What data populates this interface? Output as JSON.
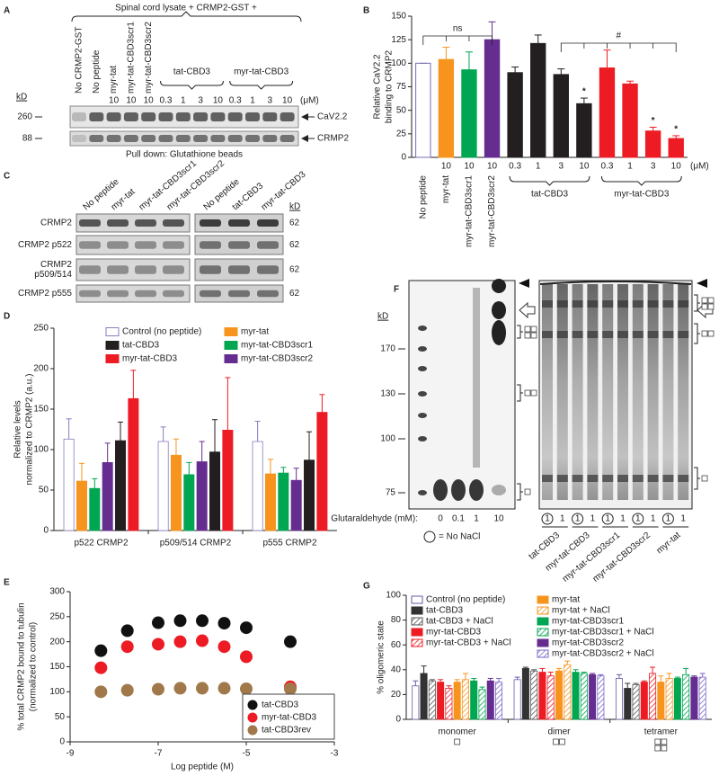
{
  "panel_a": {
    "letter": "A",
    "header": "Spinal cord lysate + CRMP2-GST +",
    "lanes": [
      "No CRMP2-GST",
      "No peptide",
      "myr-tat",
      "myr-tat-CBD3scr1",
      "myr-tat-CBD3scr2"
    ],
    "groups": [
      "tat-CBD3",
      "myr-tat-CBD3"
    ],
    "doses": [
      "10",
      "10",
      "10",
      "0.3",
      "1",
      "3",
      "10",
      "0.3",
      "1",
      "3",
      "10"
    ],
    "unit": "(μM)",
    "kd": "kD",
    "markers": [
      "260",
      "88"
    ],
    "bands": [
      "CaV2.2",
      "CRMP2"
    ],
    "footer": "Pull down: Glutathione beads"
  },
  "panel_c": {
    "letter": "C",
    "lanes_left": [
      "No peptide",
      "myr-tat",
      "myr-tat-CBD3scr1",
      "myr-tat-CBD3scr2"
    ],
    "lanes_right": [
      "No peptide",
      "tat-CBD3",
      "myr-tat-CBD3"
    ],
    "kd": "kD",
    "rows": [
      [
        "CRMP2"
      ],
      [
        "CRMP2 p522"
      ],
      [
        "CRMP2",
        "p509/514"
      ],
      [
        "CRMP2 p555"
      ]
    ],
    "sizes": [
      "62",
      "62",
      "62",
      "62"
    ]
  },
  "panel_f": {
    "letter": "F",
    "kd": "kD",
    "markers": [
      "170",
      "130",
      "100",
      "75"
    ],
    "glut_label": "Glutaraldehyde (mM):",
    "glut": [
      "0",
      "0.1",
      "1",
      "10"
    ],
    "legend": "= No NaCl",
    "lane_marks": [
      "1",
      "1",
      "1",
      "1",
      "1",
      "1",
      "1",
      "1",
      "1",
      "1"
    ],
    "groups": [
      "tat-CBD3",
      "myr-tat-CBD3",
      "myr-tat-CBD3scr1",
      "myr-tat-CBD3scr2",
      "myr-tat"
    ]
  },
  "chart_data": [
    {
      "type": "bar",
      "letter": "B",
      "ylabel": [
        "Relative CaV2.2",
        "binding to CRMP2"
      ],
      "categories": [
        "No peptide",
        "myr-tat",
        "myr-tat-CBD3scr1",
        "myr-tat-CBD3scr2",
        null,
        null,
        null,
        null,
        null,
        null,
        null,
        null
      ],
      "doses": [
        null,
        "10",
        "10",
        "10",
        "0.3",
        "1",
        "3",
        "10",
        "0.3",
        "1",
        "3",
        "10"
      ],
      "unit": "(μM)",
      "groups": [
        "tat-CBD3",
        "myr-tat-CBD3"
      ],
      "values": [
        100,
        104,
        93,
        125,
        90,
        121,
        88,
        57,
        95,
        78,
        28,
        20
      ],
      "errors": [
        0,
        13,
        19,
        19,
        6,
        9,
        6,
        6,
        19,
        3,
        4,
        3
      ],
      "colors": [
        "#ffffff",
        "#f7941d",
        "#00a651",
        "#662d91",
        "#231f20",
        "#231f20",
        "#231f20",
        "#231f20",
        "#ed1c24",
        "#ed1c24",
        "#ed1c24",
        "#ed1c24"
      ],
      "edgecolor": "#7b6cb5",
      "significance": [
        null,
        null,
        null,
        null,
        null,
        null,
        null,
        "*",
        null,
        null,
        "*",
        "*"
      ],
      "annotations": [
        "ns",
        "#"
      ],
      "ylim": [
        0,
        150
      ],
      "yticks": [
        0,
        25,
        50,
        75,
        100,
        125,
        150
      ]
    },
    {
      "type": "grouped_bar",
      "letter": "D",
      "ylabel": [
        "Relative levels",
        "normalized to CRMP2 (a.u.)"
      ],
      "categories": [
        "p522 CRMP2",
        "p509/514 CRMP2",
        "p555 CRMP2"
      ],
      "series": [
        {
          "name": "Control (no peptide)",
          "color": "#ffffff",
          "edgecolor": "#8a7cc0",
          "values": [
            113,
            110,
            110
          ],
          "errors": [
            25,
            18,
            25
          ]
        },
        {
          "name": "myr-tat",
          "color": "#f7941d",
          "values": [
            61,
            93,
            70
          ],
          "errors": [
            22,
            20,
            18
          ]
        },
        {
          "name": "myr-tat-CBD3scr1",
          "color": "#00a651",
          "values": [
            52,
            69,
            71
          ],
          "errors": [
            12,
            15,
            7
          ]
        },
        {
          "name": "myr-tat-CBD3scr2",
          "color": "#662d91",
          "values": [
            84,
            85,
            62
          ],
          "errors": [
            24,
            25,
            15
          ]
        },
        {
          "name": "tat-CBD3",
          "color": "#231f20",
          "values": [
            111,
            97,
            87
          ],
          "errors": [
            23,
            40,
            35
          ]
        },
        {
          "name": "myr-tat-CBD3",
          "color": "#ed1c24",
          "values": [
            163,
            124,
            146
          ],
          "errors": [
            35,
            65,
            22
          ]
        }
      ],
      "ylim": [
        0,
        250
      ],
      "yticks": [
        0,
        50,
        100,
        150,
        200,
        250
      ]
    },
    {
      "type": "scatter",
      "letter": "E",
      "xlabel": "Log peptide (M)",
      "ylabel": [
        "% total CRMP2 bound to tubulin",
        "(normalized to control)"
      ],
      "x": [
        -8.3,
        -7.7,
        -7.0,
        -6.5,
        -6.0,
        -5.5,
        -5.0,
        -4.0
      ],
      "series": [
        {
          "name": "tat-CBD3",
          "color": "#111111",
          "values": [
            182,
            222,
            238,
            242,
            242,
            237,
            228,
            200
          ]
        },
        {
          "name": "myr-tat-CBD3",
          "color": "#ed1c24",
          "values": [
            148,
            190,
            195,
            200,
            202,
            190,
            170,
            110
          ]
        },
        {
          "name": "tat-CBD3rev",
          "color": "#a0784a",
          "values": [
            100,
            103,
            105,
            107,
            107,
            107,
            106,
            106
          ]
        }
      ],
      "xlim": [
        -9,
        -3
      ],
      "xticks": [
        -9,
        -7,
        -5,
        -3
      ],
      "ylim": [
        0,
        300
      ],
      "yticks": [
        0,
        50,
        100,
        150,
        200,
        250,
        300
      ]
    },
    {
      "type": "grouped_bar",
      "letter": "G",
      "ylabel": "% oligomeric state",
      "categories": [
        "monomer",
        "dimer",
        "tetramer"
      ],
      "series": [
        {
          "name": "Control (no peptide)",
          "color": "#ffffff",
          "edgecolor": "#6a5aa8",
          "values": [
            27,
            32,
            33
          ],
          "errors": [
            4,
            2,
            3
          ]
        },
        {
          "name": "tat-CBD3",
          "color": "#333333",
          "values": [
            37,
            41,
            25
          ],
          "errors": [
            6,
            1,
            4
          ]
        },
        {
          "name": "tat-CBD3 + NaCl",
          "color": "#555555",
          "hatched": true,
          "values": [
            31,
            39,
            28
          ],
          "errors": [
            1,
            1,
            1
          ]
        },
        {
          "name": "myr-tat-CBD3",
          "color": "#ed1c24",
          "values": [
            30,
            38,
            30
          ],
          "errors": [
            2,
            3,
            1
          ]
        },
        {
          "name": "myr-tat-CBD3 + NaCl",
          "color": "#ed1c24",
          "hatched": true,
          "values": [
            25,
            35,
            37
          ],
          "errors": [
            2,
            3,
            5
          ]
        },
        {
          "name": "myr-tat",
          "color": "#f7941d",
          "values": [
            30,
            39,
            30
          ],
          "errors": [
            2,
            2,
            5
          ]
        },
        {
          "name": "myr-tat + NaCl",
          "color": "#f7941d",
          "hatched": true,
          "values": [
            32,
            44,
            33
          ],
          "errors": [
            5,
            3,
            4
          ]
        },
        {
          "name": "myr-tat-CBD3scr1",
          "color": "#00a651",
          "values": [
            31,
            38,
            33
          ],
          "errors": [
            2,
            2,
            1
          ]
        },
        {
          "name": "myr-tat-CBD3scr1 + NaCl",
          "color": "#00a651",
          "hatched": true,
          "values": [
            24,
            37,
            36
          ],
          "errors": [
            2,
            1,
            5
          ]
        },
        {
          "name": "myr-tat-CBD3scr2",
          "color": "#662d91",
          "values": [
            31,
            36,
            34
          ],
          "errors": [
            2,
            1,
            1
          ]
        },
        {
          "name": "myr-tat-CBD3scr2 + NaCl",
          "color": "#7b68c8",
          "hatched": true,
          "values": [
            30,
            35,
            34
          ],
          "errors": [
            3,
            1,
            3
          ]
        }
      ],
      "ylim": [
        0,
        100
      ],
      "yticks": [
        0,
        20,
        40,
        60,
        80,
        100
      ]
    }
  ]
}
